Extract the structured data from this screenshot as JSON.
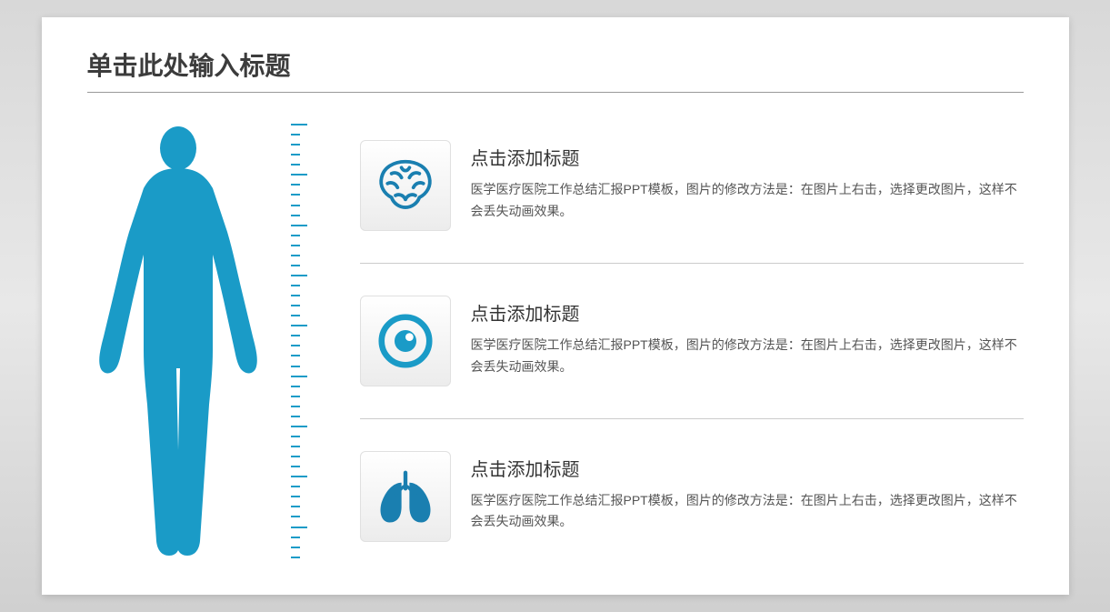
{
  "slide": {
    "title": "单击此处输入标题",
    "background_color": "#ffffff",
    "accent_color": "#1a9bc7",
    "title_color": "#3c3c3c",
    "title_fontsize": 28,
    "divider_color": "#999999"
  },
  "body_figure": {
    "fill_color": "#1a9bc7"
  },
  "ruler": {
    "tick_color": "#1a9bc7",
    "major_tick_width": 18,
    "minor_tick_width": 10,
    "tick_count": 44
  },
  "items": [
    {
      "icon": "brain-icon",
      "icon_color": "#1a7fb0",
      "title": "点击添加标题",
      "desc": "医学医疗医院工作总结汇报PPT模板，图片的修改方法是：在图片上右击，选择更改图片，这样不会丢失动画效果。"
    },
    {
      "icon": "eye-icon",
      "icon_color": "#1a9bc7",
      "title": "点击添加标题",
      "desc": "医学医疗医院工作总结汇报PPT模板，图片的修改方法是：在图片上右击，选择更改图片，这样不会丢失动画效果。"
    },
    {
      "icon": "lungs-icon",
      "icon_color": "#1a7fb0",
      "title": "点击添加标题",
      "desc": "医学医疗医院工作总结汇报PPT模板，图片的修改方法是：在图片上右击，选择更改图片，这样不会丢失动画效果。"
    }
  ],
  "item_style": {
    "title_fontsize": 20,
    "desc_fontsize": 14,
    "icon_box_size": 100,
    "icon_box_bg_top": "#ffffff",
    "icon_box_bg_bottom": "#ececec",
    "divider_color": "#cccccc"
  }
}
